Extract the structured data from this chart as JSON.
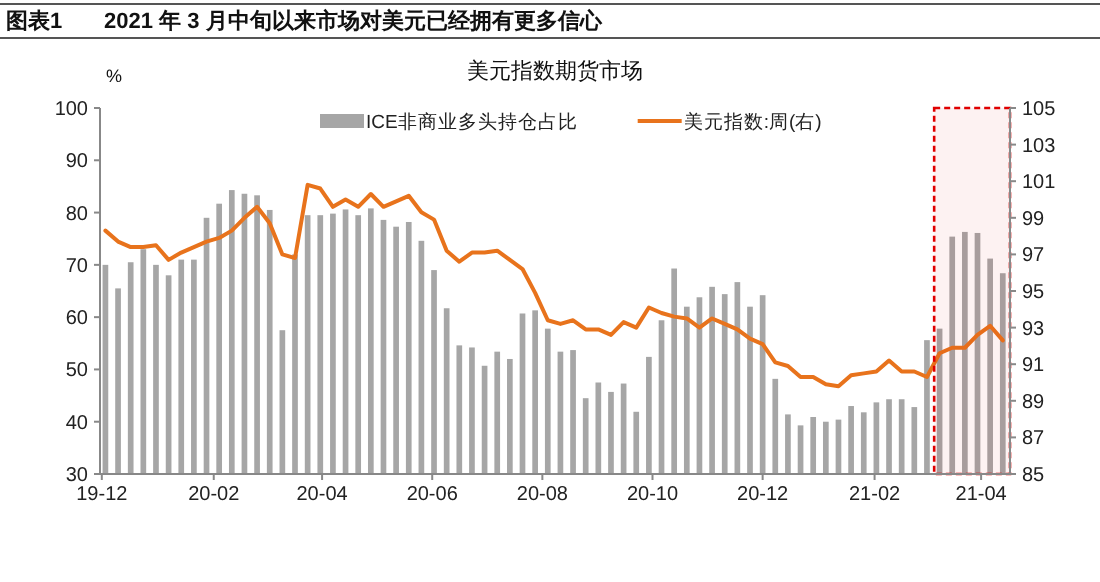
{
  "chart_data": {
    "type": "bar",
    "title": "美元指数期货市场",
    "ylabel": "%",
    "annotations": [
      "图表1",
      "2021 年 3 月中旬以来市场对美元已经拥有更多信心"
    ],
    "x": [
      "2019-12-03",
      "2019-12-10",
      "2019-12-17",
      "2019-12-24",
      "2019-12-31",
      "2020-01-07",
      "2020-01-14",
      "2020-01-21",
      "2020-01-28",
      "2020-02-04",
      "2020-02-11",
      "2020-02-18",
      "2020-02-25",
      "2020-03-03",
      "2020-03-10",
      "2020-03-17",
      "2020-03-24",
      "2020-03-31",
      "2020-04-07",
      "2020-04-14",
      "2020-04-21",
      "2020-04-28",
      "2020-05-05",
      "2020-05-12",
      "2020-05-19",
      "2020-05-26",
      "2020-06-02",
      "2020-06-09",
      "2020-06-16",
      "2020-06-23",
      "2020-06-30",
      "2020-07-07",
      "2020-07-14",
      "2020-07-21",
      "2020-07-28",
      "2020-08-04",
      "2020-08-11",
      "2020-08-18",
      "2020-08-25",
      "2020-09-01",
      "2020-09-08",
      "2020-09-15",
      "2020-09-22",
      "2020-09-29",
      "2020-10-06",
      "2020-10-13",
      "2020-10-20",
      "2020-10-27",
      "2020-11-03",
      "2020-11-10",
      "2020-11-17",
      "2020-11-24",
      "2020-12-01",
      "2020-12-08",
      "2020-12-15",
      "2020-12-22",
      "2020-12-29",
      "2021-01-05",
      "2021-01-12",
      "2021-01-19",
      "2021-01-26",
      "2021-02-02",
      "2021-02-09",
      "2021-02-16",
      "2021-02-23",
      "2021-03-02",
      "2021-03-09",
      "2021-03-16",
      "2021-03-23",
      "2021-03-30",
      "2021-04-06",
      "2021-04-13"
    ],
    "series": [
      {
        "name": "ICE非商业多头持仓占比",
        "type": "bar",
        "color": "#a6a6a6",
        "values": [
          70,
          65.5,
          70.5,
          73,
          70,
          68,
          71,
          71,
          79,
          81.7,
          84.3,
          83.6,
          83.3,
          80.5,
          57.5,
          72,
          79.5,
          79.5,
          79.8,
          80.6,
          79.5,
          80.8,
          78.6,
          77.3,
          78.2,
          74.6,
          69,
          61.7,
          54.6,
          54.2,
          50.7,
          53.4,
          52,
          60.7,
          61.3,
          57.8,
          53.4,
          53.7,
          44.5,
          47.5,
          45.7,
          47.3,
          41.9,
          52.4,
          59.4,
          69.3,
          62,
          63.8,
          65.8,
          64.4,
          66.7,
          62,
          64.2,
          48.2,
          41.4,
          39.3,
          40.9,
          40,
          40.4,
          43,
          41.8,
          43.7,
          44.3,
          44.3,
          42.8,
          55.6,
          57.8,
          75.4,
          76.3,
          76.1,
          71.2,
          68.4
        ]
      },
      {
        "name": "美元指数:周(右)",
        "type": "line",
        "axis": "y2",
        "color": "#e8731c",
        "values": [
          98.3,
          97.7,
          97.4,
          97.4,
          97.5,
          96.7,
          97.1,
          97.4,
          97.7,
          97.9,
          98.3,
          99,
          99.6,
          98.7,
          97,
          96.8,
          100.8,
          100.6,
          99.6,
          100,
          99.6,
          100.3,
          99.6,
          99.9,
          100.2,
          99.3,
          98.9,
          97.2,
          96.6,
          97.1,
          97.1,
          97.2,
          96.7,
          96.2,
          94.9,
          93.4,
          93.2,
          93.4,
          92.9,
          92.9,
          92.6,
          93.3,
          93,
          94.1,
          93.8,
          93.6,
          93.5,
          93,
          93.5,
          93.2,
          92.9,
          92.4,
          92.1,
          91.1,
          90.9,
          90.3,
          90.3,
          89.9,
          89.8,
          90.4,
          90.5,
          90.6,
          91.2,
          90.6,
          90.6,
          90.3,
          91.6,
          91.9,
          91.9,
          92.6,
          93.1,
          92.3
        ]
      }
    ],
    "xlim": [
      "2019-11-30",
      "2021-04-17"
    ],
    "xticks": [
      {
        "value": "2019-12-01",
        "label": "19-12"
      },
      {
        "value": "2020-02-01",
        "label": "20-02"
      },
      {
        "value": "2020-04-01",
        "label": "20-04"
      },
      {
        "value": "2020-06-01",
        "label": "20-06"
      },
      {
        "value": "2020-08-01",
        "label": "20-08"
      },
      {
        "value": "2020-10-01",
        "label": "20-10"
      },
      {
        "value": "2020-12-01",
        "label": "20-12"
      },
      {
        "value": "2021-02-01",
        "label": "21-02"
      },
      {
        "value": "2021-04-01",
        "label": "21-04"
      }
    ],
    "ylim": [
      30,
      100
    ],
    "yticks": [
      30,
      40,
      50,
      60,
      70,
      80,
      90,
      100
    ],
    "y2lim": [
      85,
      105
    ],
    "y2ticks": [
      85,
      87,
      89,
      91,
      93,
      95,
      97,
      99,
      101,
      103,
      105
    ],
    "bands": [
      {
        "axis": "x",
        "from": "2021-03-06",
        "to": "2021-04-17",
        "color": "#e00000"
      }
    ],
    "legend": "top",
    "grid": false
  }
}
